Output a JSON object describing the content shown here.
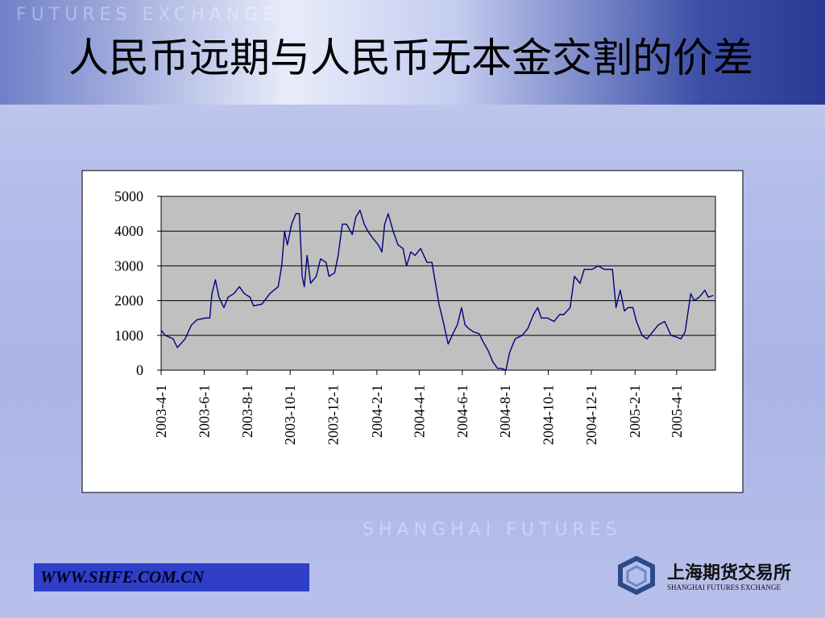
{
  "title": "人民币远期与人民币无本金交割的价差",
  "watermark": [
    "FUTURES EXCHANGE",
    "SHANGHAI FUTURES"
  ],
  "footer": {
    "url": "WWW.SHFE.COM.CN",
    "logo_cn": "上海期货交易所",
    "logo_en": "SHANGHAI FUTURES EXCHANGE"
  },
  "chart_data": {
    "type": "line",
    "x": [
      "2003-4-1",
      "2003-4-7",
      "2003-4-18",
      "2003-4-24",
      "2003-5-5",
      "2003-5-14",
      "2003-5-22",
      "2003-6-3",
      "2003-6-9",
      "2003-6-12",
      "2003-6-17",
      "2003-6-22",
      "2003-6-29",
      "2003-7-5",
      "2003-7-13",
      "2003-7-21",
      "2003-7-28",
      "2003-8-5",
      "2003-8-10",
      "2003-8-22",
      "2003-9-2",
      "2003-9-14",
      "2003-9-19",
      "2003-9-23",
      "2003-9-27",
      "2003-10-3",
      "2003-10-9",
      "2003-10-14",
      "2003-10-18",
      "2003-10-21",
      "2003-10-25",
      "2003-10-30",
      "2003-11-7",
      "2003-11-13",
      "2003-11-21",
      "2003-11-25",
      "2003-12-3",
      "2003-12-8",
      "2003-12-14",
      "2003-12-20",
      "2003-12-28",
      "2004-1-2",
      "2004-1-8",
      "2004-1-14",
      "2004-1-19",
      "2004-1-26",
      "2004-2-3",
      "2004-2-8",
      "2004-2-12",
      "2004-2-17",
      "2004-2-24",
      "2004-3-2",
      "2004-3-9",
      "2004-3-14",
      "2004-3-20",
      "2004-3-26",
      "2004-4-3",
      "2004-4-12",
      "2004-4-19",
      "2004-4-24",
      "2004-4-29",
      "2004-5-5",
      "2004-5-12",
      "2004-5-20",
      "2004-5-25",
      "2004-5-31",
      "2004-6-5",
      "2004-6-10",
      "2004-6-17",
      "2004-6-25",
      "2004-7-1",
      "2004-7-8",
      "2004-7-14",
      "2004-7-21",
      "2004-7-27",
      "2004-8-2",
      "2004-8-7",
      "2004-8-15",
      "2004-8-25",
      "2004-9-2",
      "2004-9-10",
      "2004-9-16",
      "2004-9-21",
      "2004-9-30",
      "2004-10-9",
      "2004-10-17",
      "2004-10-23",
      "2004-11-1",
      "2004-11-7",
      "2004-11-15",
      "2004-11-21",
      "2004-12-2",
      "2004-12-11",
      "2004-12-19",
      "2004-12-31",
      "2005-1-5",
      "2005-1-11",
      "2005-1-17",
      "2005-1-22",
      "2005-1-29",
      "2005-2-3",
      "2005-2-11",
      "2005-2-18",
      "2005-2-26",
      "2005-3-6",
      "2005-3-15",
      "2005-3-24",
      "2005-4-1",
      "2005-4-7",
      "2005-4-13",
      "2005-4-21",
      "2005-4-26",
      "2005-5-3",
      "2005-5-11",
      "2005-5-16",
      "2005-5-23"
    ],
    "series": [
      {
        "color": "#000080",
        "values": [
          1150,
          1000,
          900,
          650,
          900,
          1300,
          1450,
          1500,
          1500,
          2200,
          2600,
          2100,
          1800,
          2100,
          2200,
          2400,
          2200,
          2100,
          1850,
          1900,
          2200,
          2400,
          3000,
          4000,
          3600,
          4200,
          4500,
          4500,
          2700,
          2400,
          3300,
          2500,
          2700,
          3200,
          3100,
          2700,
          2800,
          3300,
          4200,
          4200,
          3900,
          4400,
          4600,
          4200,
          4000,
          3800,
          3600,
          3400,
          4200,
          4500,
          4000,
          3600,
          3500,
          3000,
          3400,
          3300,
          3500,
          3100,
          3100,
          2500,
          1900,
          1400,
          750,
          1100,
          1300,
          1800,
          1300,
          1200,
          1100,
          1050,
          800,
          550,
          250,
          50,
          50,
          0,
          500,
          900,
          1000,
          1200,
          1600,
          1800,
          1500,
          1500,
          1400,
          1600,
          1600,
          1800,
          2700,
          2500,
          2900,
          2900,
          3000,
          2900,
          2900,
          1800,
          2300,
          1700,
          1800,
          1800,
          1400,
          1000,
          900,
          1100,
          1300,
          1400,
          1000,
          950,
          900,
          1100,
          2200,
          2000,
          2100,
          2300,
          2100,
          2150
        ]
      }
    ],
    "xlim": [
      "2003-4-1",
      "2005-5-26"
    ],
    "xticks": [
      "2003-4-1",
      "2003-6-1",
      "2003-8-1",
      "2003-10-1",
      "2003-12-1",
      "2004-2-1",
      "2004-4-1",
      "2004-6-1",
      "2004-8-1",
      "2004-10-1",
      "2004-12-1",
      "2005-2-1",
      "2005-4-1"
    ],
    "ylim": [
      0,
      5000
    ],
    "yticks": [
      0,
      1000,
      2000,
      3000,
      4000,
      5000
    ],
    "grid": true,
    "plot_background": "#c0c0c0"
  }
}
